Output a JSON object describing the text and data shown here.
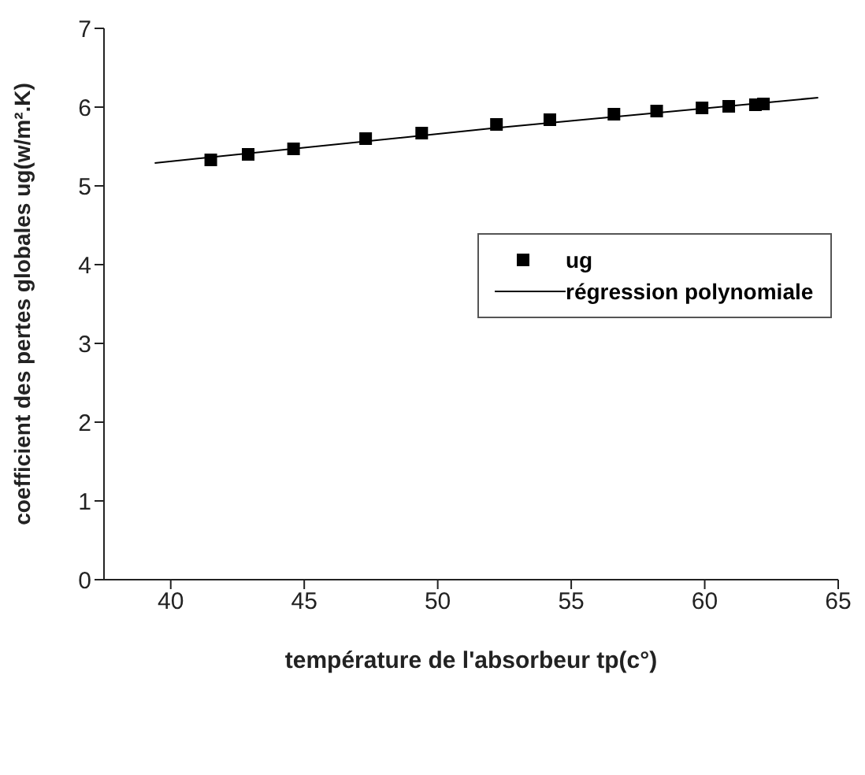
{
  "chart_data": {
    "type": "scatter",
    "xlabel": "température de l'absorbeur tp(c°)",
    "ylabel": "coefficient des pertes globales ug(w/m².K)",
    "series": [
      {
        "name": "ug",
        "color": "#000000",
        "marker": "square",
        "x": [
          41.5,
          42.9,
          44.6,
          47.3,
          49.4,
          52.2,
          54.2,
          56.6,
          58.2,
          59.9,
          60.9,
          61.9,
          62.2
        ],
        "values": [
          5.33,
          5.4,
          5.47,
          5.6,
          5.67,
          5.78,
          5.84,
          5.91,
          5.95,
          5.99,
          6.01,
          6.03,
          6.04
        ]
      },
      {
        "name": "régression polynomiale",
        "type": "line",
        "color": "#000000",
        "marker": "none",
        "x": [
          39.4,
          52,
          64.25
        ],
        "values": [
          5.29,
          5.73,
          6.12
        ]
      }
    ],
    "xlim": [
      37.5,
      65
    ],
    "xticks": [
      40,
      45,
      50,
      55,
      60,
      65
    ],
    "ylim": [
      0,
      7
    ],
    "yticks": [
      0,
      1,
      2,
      3,
      4,
      5,
      6,
      7
    ],
    "grid": false,
    "legend": "right"
  }
}
